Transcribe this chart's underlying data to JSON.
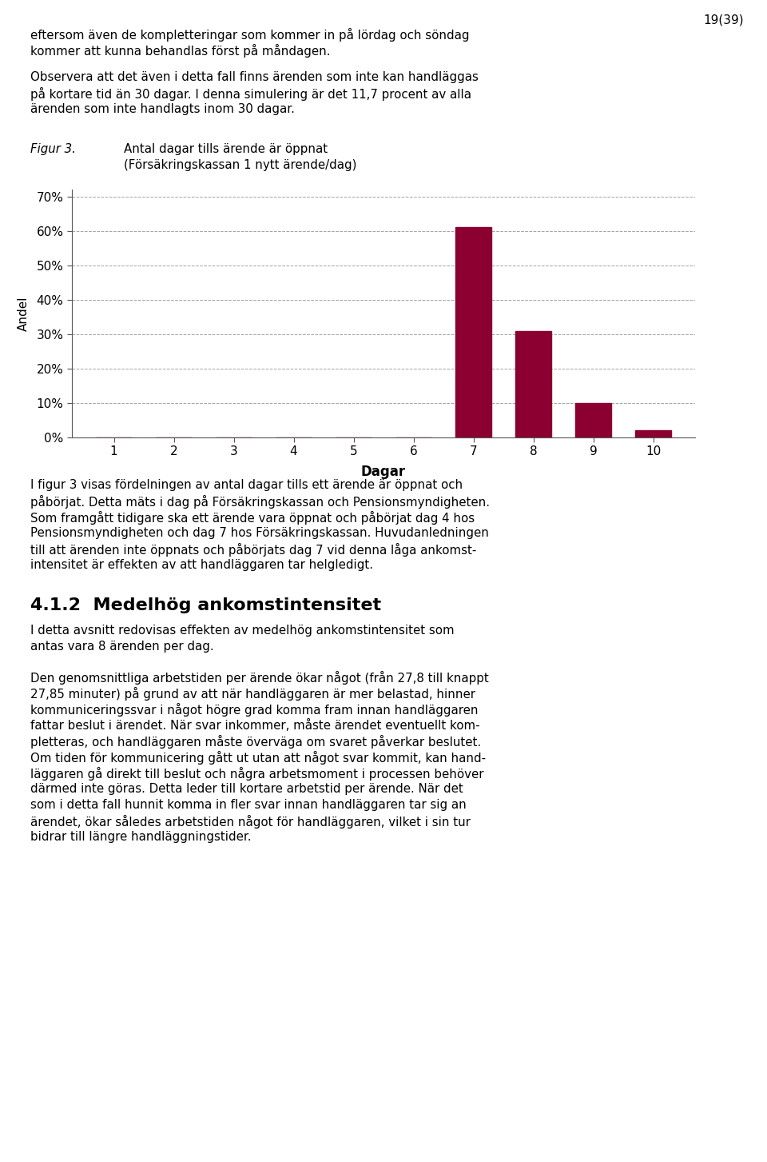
{
  "title_figur": "Figur 3.",
  "title_line1": "Antal dagar tills ärende är öppnat",
  "title_line2": "(Försäkringskassan 1 nytt ärende/dag)",
  "xlabel": "Dagar",
  "ylabel": "Andel",
  "categories": [
    1,
    2,
    3,
    4,
    5,
    6,
    7,
    8,
    9,
    10
  ],
  "values": [
    0.0,
    0.0,
    0.0,
    0.0,
    0.0,
    0.0,
    0.61,
    0.31,
    0.1,
    0.02
  ],
  "bar_color": "#8B0030",
  "yticks": [
    0.0,
    0.1,
    0.2,
    0.3,
    0.4,
    0.5,
    0.6,
    0.7
  ],
  "ylim": [
    0,
    0.72
  ],
  "grid_color": "#999999",
  "background_color": "#ffffff",
  "text_color": "#000000",
  "page_text_1": [
    "eftersom även de kompletteringar som kommer in på lördag och söndag",
    "kommer att kunna behandlas först på måndagen."
  ],
  "page_text_2": [
    "Observera att det även i detta fall finns ärenden som inte kan handläggas",
    "på kortare tid än 30 dagar. I denna simulering är det 11,7 procent av alla",
    "ärenden som inte handlagts inom 30 dagar."
  ],
  "below_text": [
    "I figur 3 visas fördelningen av antal dagar tills ett ärende är öppnat och",
    "påbörjat. Detta mäts i dag på Försäkringskassan och Pensionsmyndigheten.",
    "Som framgått tidigare ska ett ärende vara öppnat och påbörjat dag 4 hos",
    "Pensionsmyndigheten och dag 7 hos Försäkringskassan. Huvudanledningen",
    "till att ärenden inte öppnats och påbörjats dag 7 vid denna låga ankomst-",
    "intensitet är effekten av att handläggaren tar helgledigt."
  ],
  "section_title": "4.1.2  Medelhög ankomstintensitet",
  "section_text_1": [
    "I detta avsnitt redovisas effekten av medelhög ankomstintensitet som",
    "antas vara 8 ärenden per dag."
  ],
  "section_text_2": [
    "Den genomsnittliga arbetstiden per ärende ökar något (från 27,8 till knappt",
    "27,85 minuter) på grund av att när handläggaren är mer belastad, hinner",
    "kommuniceringssvar i något högre grad komma fram innan handläggaren",
    "fattar beslut i ärendet. När svar inkommer, måste ärendet eventuellt kom-",
    "pletteras, och handläggaren måste överväga om svaret påverkar beslutet.",
    "Om tiden för kommunicering gått ut utan att något svar kommit, kan hand-",
    "läggaren gå direkt till beslut och några arbetsmoment i processen behöver",
    "därmed inte göras. Detta leder till kortare arbetstid per ärende. När det",
    "som i detta fall hunnit komma in fler svar innan handläggaren tar sig an",
    "ärendet, ökar således arbetstiden något för handläggaren, vilket i sin tur",
    "bidrar till längre handläggningstider."
  ],
  "page_number": "19(39)"
}
